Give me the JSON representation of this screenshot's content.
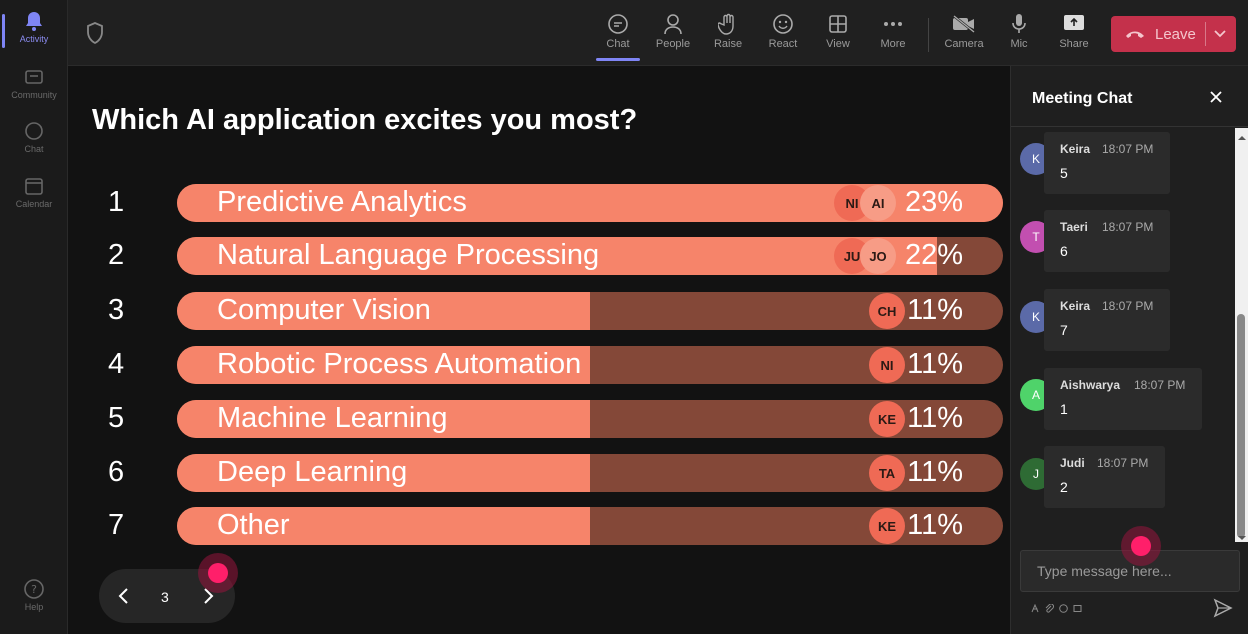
{
  "rail": {
    "items": [
      {
        "label": "Activity",
        "icon": "bell-icon"
      },
      {
        "label": "Community",
        "icon": "community-icon"
      },
      {
        "label": "Chat",
        "icon": "chat-icon"
      },
      {
        "label": "Calendar",
        "icon": "calendar-icon"
      },
      {
        "label": "Help",
        "icon": "help-icon"
      }
    ]
  },
  "toolbar": {
    "chat": "Chat",
    "people": "People",
    "raise": "Raise",
    "react": "React",
    "view": "View",
    "more": "More",
    "camera": "Camera",
    "mic": "Mic",
    "share": "Share",
    "leave": "Leave"
  },
  "poll": {
    "question": "Which AI application excites you most?",
    "options": [
      {
        "num": "1",
        "label": "Predictive Analytics",
        "percent": "23%",
        "fill": 1.0,
        "avatars": [
          "NI",
          "AI"
        ]
      },
      {
        "num": "2",
        "label": "Natural Language Processing",
        "percent": "22%",
        "fill": 0.92,
        "avatars": [
          "JU",
          "JO"
        ]
      },
      {
        "num": "3",
        "label": "Computer Vision",
        "percent": "11%",
        "fill": 0.5,
        "avatars": [
          "CH"
        ]
      },
      {
        "num": "4",
        "label": "Robotic Process Automation",
        "percent": "11%",
        "fill": 0.5,
        "avatars": [
          "NI"
        ]
      },
      {
        "num": "5",
        "label": "Machine Learning",
        "percent": "11%",
        "fill": 0.5,
        "avatars": [
          "KE"
        ]
      },
      {
        "num": "6",
        "label": "Deep Learning",
        "percent": "11%",
        "fill": 0.5,
        "avatars": [
          "TA"
        ]
      },
      {
        "num": "7",
        "label": "Other",
        "percent": "11%",
        "fill": 0.5,
        "avatars": [
          "KE"
        ]
      }
    ],
    "page": "3"
  },
  "chat": {
    "title": "Meeting Chat",
    "messages": [
      {
        "initial": "K",
        "name": "Keira",
        "time": "18:07 PM",
        "text": "5",
        "color": "#5b6aa8"
      },
      {
        "initial": "T",
        "name": "Taeri",
        "time": "18:07 PM",
        "text": "6",
        "color": "#c24fb0"
      },
      {
        "initial": "K",
        "name": "Keira",
        "time": "18:07 PM",
        "text": "7",
        "color": "#5b6aa8"
      },
      {
        "initial": "A",
        "name": "Aishwarya",
        "time": "18:07 PM",
        "text": "1",
        "color": "#4fd36a"
      },
      {
        "initial": "J",
        "name": "Judi",
        "time": "18:07 PM",
        "text": "2",
        "color": "#2e6b34"
      }
    ],
    "placeholder": "Type message here..."
  },
  "colors": {
    "accent": "#7f85f5",
    "leave": "#c4314b",
    "bar_fill": "#f6846a",
    "bar_track": "#844838",
    "cursor_dot": "#ff1f6a"
  }
}
